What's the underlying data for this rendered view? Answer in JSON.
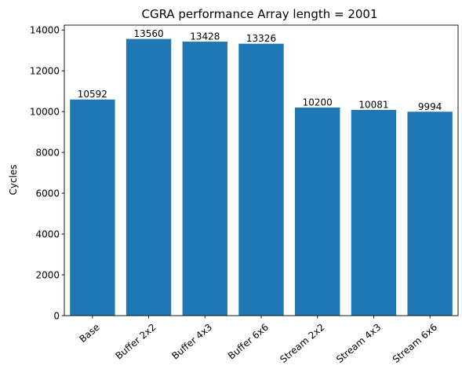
{
  "chart_data": {
    "type": "bar",
    "title": "CGRA performance Array length = 2001",
    "xlabel": "",
    "ylabel": "Cycles",
    "categories": [
      "Base",
      "Buffer 2x2",
      "Buffer 4x3",
      "Buffer 6x6",
      "Stream 2x2",
      "Stream 4x3",
      "Stream 6x6"
    ],
    "values": [
      10592,
      13560,
      13428,
      13326,
      10200,
      10081,
      9994
    ],
    "data_labels": [
      "10592",
      "13560",
      "13428",
      "13326",
      "10200",
      "10081",
      "9994"
    ],
    "ylim": [
      0,
      14238
    ],
    "yticks": [
      0,
      2000,
      4000,
      6000,
      8000,
      10000,
      12000,
      14000
    ],
    "ytick_labels": [
      "0",
      "2000",
      "4000",
      "6000",
      "8000",
      "10000",
      "12000",
      "14000"
    ],
    "xtick_rotation_deg": 40,
    "grid": false,
    "legend": "none",
    "colors": {
      "bar": "#1f77b4"
    }
  }
}
